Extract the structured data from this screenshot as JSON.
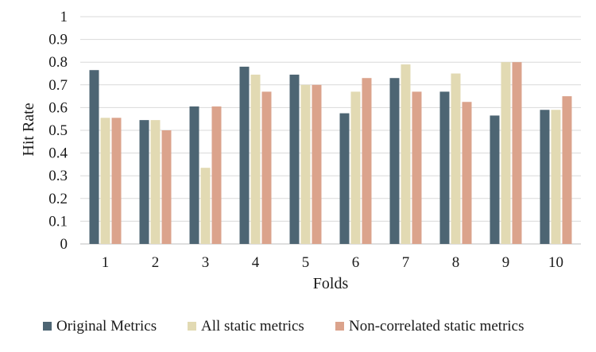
{
  "chart_data": {
    "type": "bar",
    "categories": [
      "1",
      "2",
      "3",
      "4",
      "5",
      "6",
      "7",
      "8",
      "9",
      "10"
    ],
    "series": [
      {
        "name": "Original Metrics",
        "color": "#4d6573",
        "values": [
          0.765,
          0.545,
          0.605,
          0.78,
          0.745,
          0.575,
          0.73,
          0.67,
          0.565,
          0.59
        ]
      },
      {
        "name": "All static metrics",
        "color": "#e2dab3",
        "values": [
          0.555,
          0.545,
          0.335,
          0.745,
          0.7,
          0.67,
          0.79,
          0.75,
          0.8,
          0.59
        ]
      },
      {
        "name": "Non-correlated static metrics",
        "color": "#dba38c",
        "values": [
          0.555,
          0.5,
          0.605,
          0.67,
          0.7,
          0.73,
          0.67,
          0.625,
          0.8,
          0.65
        ]
      }
    ],
    "yticks": [
      "0",
      "0.1",
      "0.2",
      "0.3",
      "0.4",
      "0.5",
      "0.6",
      "0.7",
      "0.8",
      "0.9",
      "1"
    ],
    "ylim": [
      0,
      1
    ],
    "xlabel": "Folds",
    "ylabel": "Hit Rate",
    "grid": true,
    "legend_position": "bottom"
  }
}
